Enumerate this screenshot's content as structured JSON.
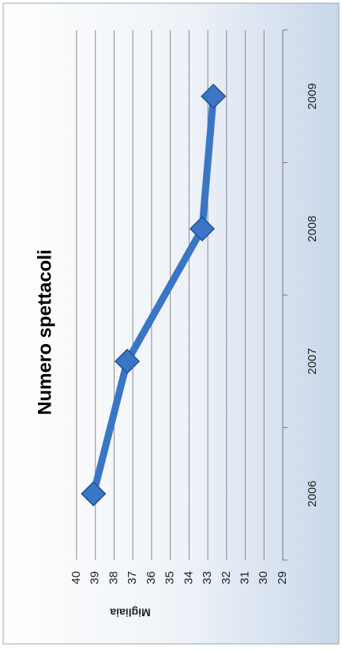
{
  "chart_data": {
    "type": "line",
    "title": "Numero spettacoli",
    "y_label": "Migliaia",
    "categories": [
      "2006",
      "2007",
      "2008",
      "2009"
    ],
    "values": [
      39.1,
      37.3,
      33.3,
      32.7
    ],
    "color": "#3a76c6",
    "ylim": [
      29,
      40
    ],
    "yticks": [
      29,
      30,
      31,
      32,
      33,
      34,
      35,
      36,
      37,
      38,
      39,
      40
    ],
    "grid": true
  }
}
